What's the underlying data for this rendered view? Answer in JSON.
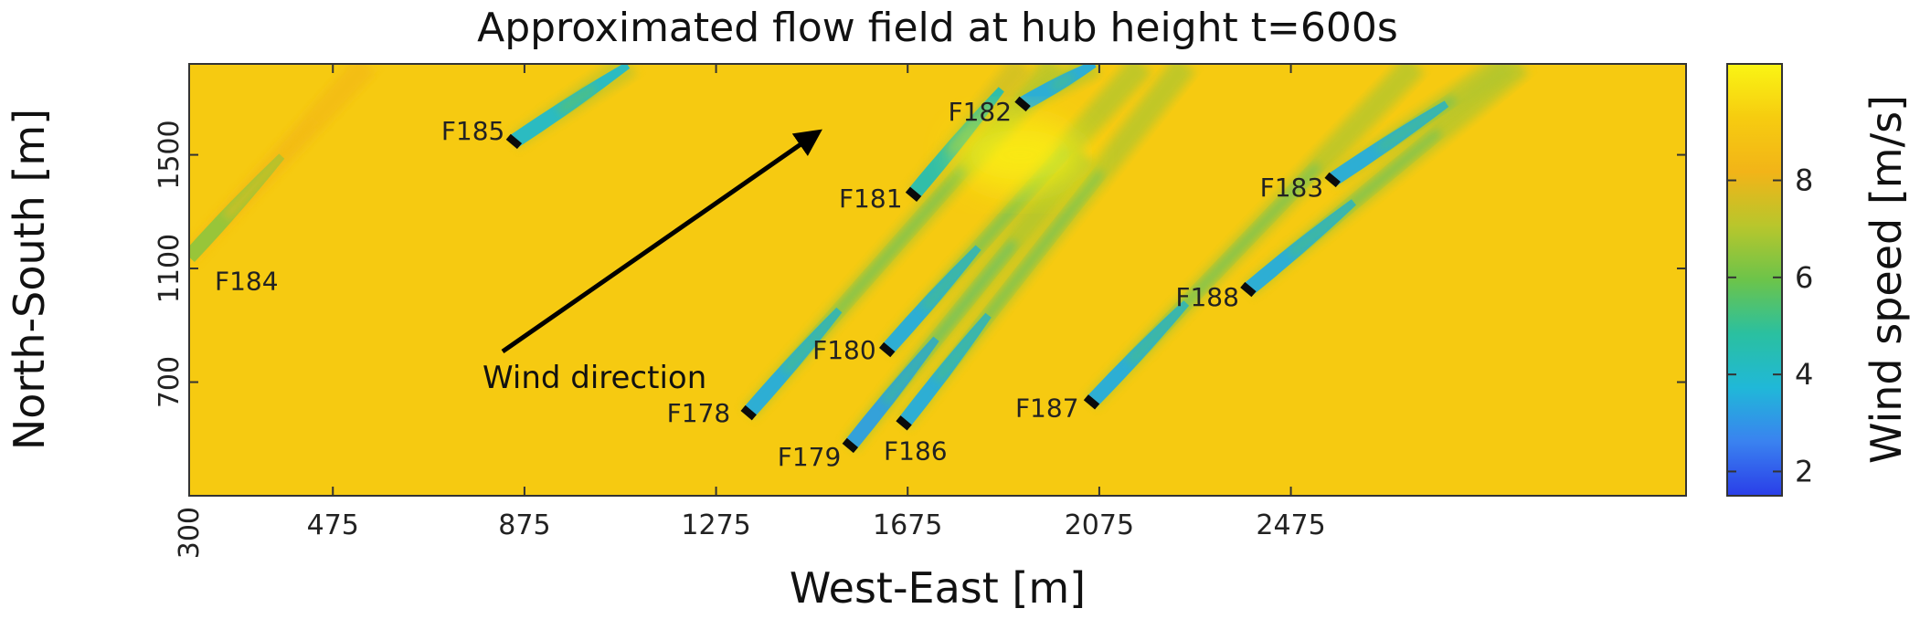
{
  "chart_data": {
    "type": "heatmap",
    "title": "Approximated flow field at hub height t=600s",
    "xlabel": "West-East [m]",
    "ylabel": "North-South [m]",
    "xlim": [
      175,
      3300
    ],
    "ylim": [
      300,
      1820
    ],
    "xticks": [
      475,
      875,
      1275,
      1675,
      2075,
      2475
    ],
    "yticks": [
      300,
      700,
      1100,
      1500
    ],
    "colorbar": {
      "label": "Wind speed [m/s]",
      "range": [
        1.5,
        10.4
      ],
      "ticks": [
        2,
        4,
        6,
        8
      ],
      "colors": [
        "#2a3ee8",
        "#3a82f0",
        "#20b8d8",
        "#2ac0a0",
        "#6cc44a",
        "#b8c62c",
        "#f2b418",
        "#f6cc10",
        "#faf514"
      ]
    },
    "background_speed": 9.2,
    "wind_direction": {
      "label": "Wind direction",
      "angle_deg": 52
    },
    "turbines": [
      {
        "id": "F178",
        "x": 1343,
        "y": 592
      },
      {
        "id": "F179",
        "x": 1555,
        "y": 477
      },
      {
        "id": "F180",
        "x": 1632,
        "y": 814
      },
      {
        "id": "F181",
        "x": 1687,
        "y": 1361
      },
      {
        "id": "F182",
        "x": 1915,
        "y": 1679
      },
      {
        "id": "F183",
        "x": 2562,
        "y": 1412
      },
      {
        "id": "F184",
        "x": 175,
        "y": 1140
      },
      {
        "id": "F185",
        "x": 853,
        "y": 1547
      },
      {
        "id": "F186",
        "x": 1667,
        "y": 556
      },
      {
        "id": "F187",
        "x": 2059,
        "y": 630
      },
      {
        "id": "F188",
        "x": 2386,
        "y": 1026
      }
    ],
    "wakes": [
      {
        "id": "F184",
        "x0": 175,
        "y0": 1140,
        "x1": 545,
        "y1": 1820,
        "min_speed": 6.5
      },
      {
        "id": "F185",
        "x0": 853,
        "y0": 1547,
        "x1": 1095,
        "y1": 1820,
        "min_speed": 4.0
      },
      {
        "id": "F178",
        "x0": 1343,
        "y0": 592,
        "x1": 1985,
        "y1": 1820,
        "min_speed": 3.5
      },
      {
        "id": "F179",
        "x0": 1555,
        "y0": 477,
        "x1": 2045,
        "y1": 1500,
        "min_speed": 3.2
      },
      {
        "id": "F180",
        "x0": 1632,
        "y0": 814,
        "x1": 2165,
        "y1": 1820,
        "min_speed": 3.5
      },
      {
        "id": "F186",
        "x0": 1667,
        "y0": 556,
        "x1": 2255,
        "y1": 1820,
        "min_speed": 3.5
      },
      {
        "id": "F181",
        "x0": 1687,
        "y0": 1361,
        "x1": 1915,
        "y1": 1820,
        "min_speed": 4.5
      },
      {
        "id": "F182",
        "x0": 1915,
        "y0": 1679,
        "x1": 2065,
        "y1": 1820,
        "min_speed": 3.5
      },
      {
        "id": "F187",
        "x0": 2059,
        "y0": 630,
        "x1": 2735,
        "y1": 1820,
        "min_speed": 3.5
      },
      {
        "id": "F188",
        "x0": 2386,
        "y0": 1026,
        "x1": 2955,
        "y1": 1820,
        "min_speed": 3.5
      },
      {
        "id": "F183",
        "x0": 2562,
        "y0": 1412,
        "x1": 2925,
        "y1": 1820,
        "min_speed": 3.5
      }
    ]
  }
}
